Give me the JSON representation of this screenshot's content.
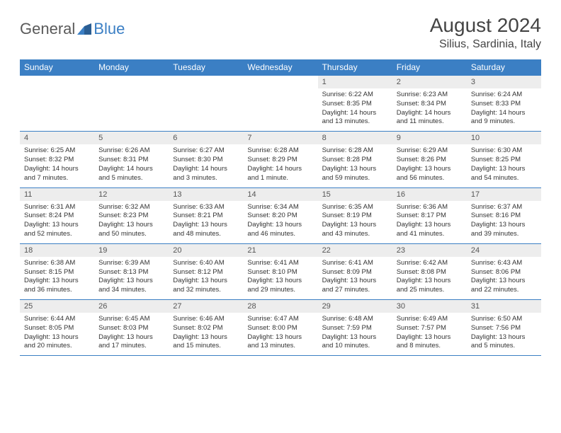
{
  "brand": {
    "name_part1": "General",
    "name_part2": "Blue"
  },
  "title": "August 2024",
  "location": "Silius, Sardinia, Italy",
  "colors": {
    "header_bg": "#3b7fc4",
    "header_text": "#ffffff",
    "daynum_bg": "#ededed",
    "daynum_text": "#555555",
    "body_text": "#333333",
    "border": "#3b7fc4",
    "page_bg": "#ffffff"
  },
  "days_of_week": [
    "Sunday",
    "Monday",
    "Tuesday",
    "Wednesday",
    "Thursday",
    "Friday",
    "Saturday"
  ],
  "weeks": [
    [
      {
        "n": "",
        "sr": "",
        "ss": "",
        "dl": ""
      },
      {
        "n": "",
        "sr": "",
        "ss": "",
        "dl": ""
      },
      {
        "n": "",
        "sr": "",
        "ss": "",
        "dl": ""
      },
      {
        "n": "",
        "sr": "",
        "ss": "",
        "dl": ""
      },
      {
        "n": "1",
        "sr": "Sunrise: 6:22 AM",
        "ss": "Sunset: 8:35 PM",
        "dl": "Daylight: 14 hours and 13 minutes."
      },
      {
        "n": "2",
        "sr": "Sunrise: 6:23 AM",
        "ss": "Sunset: 8:34 PM",
        "dl": "Daylight: 14 hours and 11 minutes."
      },
      {
        "n": "3",
        "sr": "Sunrise: 6:24 AM",
        "ss": "Sunset: 8:33 PM",
        "dl": "Daylight: 14 hours and 9 minutes."
      }
    ],
    [
      {
        "n": "4",
        "sr": "Sunrise: 6:25 AM",
        "ss": "Sunset: 8:32 PM",
        "dl": "Daylight: 14 hours and 7 minutes."
      },
      {
        "n": "5",
        "sr": "Sunrise: 6:26 AM",
        "ss": "Sunset: 8:31 PM",
        "dl": "Daylight: 14 hours and 5 minutes."
      },
      {
        "n": "6",
        "sr": "Sunrise: 6:27 AM",
        "ss": "Sunset: 8:30 PM",
        "dl": "Daylight: 14 hours and 3 minutes."
      },
      {
        "n": "7",
        "sr": "Sunrise: 6:28 AM",
        "ss": "Sunset: 8:29 PM",
        "dl": "Daylight: 14 hours and 1 minute."
      },
      {
        "n": "8",
        "sr": "Sunrise: 6:28 AM",
        "ss": "Sunset: 8:28 PM",
        "dl": "Daylight: 13 hours and 59 minutes."
      },
      {
        "n": "9",
        "sr": "Sunrise: 6:29 AM",
        "ss": "Sunset: 8:26 PM",
        "dl": "Daylight: 13 hours and 56 minutes."
      },
      {
        "n": "10",
        "sr": "Sunrise: 6:30 AM",
        "ss": "Sunset: 8:25 PM",
        "dl": "Daylight: 13 hours and 54 minutes."
      }
    ],
    [
      {
        "n": "11",
        "sr": "Sunrise: 6:31 AM",
        "ss": "Sunset: 8:24 PM",
        "dl": "Daylight: 13 hours and 52 minutes."
      },
      {
        "n": "12",
        "sr": "Sunrise: 6:32 AM",
        "ss": "Sunset: 8:23 PM",
        "dl": "Daylight: 13 hours and 50 minutes."
      },
      {
        "n": "13",
        "sr": "Sunrise: 6:33 AM",
        "ss": "Sunset: 8:21 PM",
        "dl": "Daylight: 13 hours and 48 minutes."
      },
      {
        "n": "14",
        "sr": "Sunrise: 6:34 AM",
        "ss": "Sunset: 8:20 PM",
        "dl": "Daylight: 13 hours and 46 minutes."
      },
      {
        "n": "15",
        "sr": "Sunrise: 6:35 AM",
        "ss": "Sunset: 8:19 PM",
        "dl": "Daylight: 13 hours and 43 minutes."
      },
      {
        "n": "16",
        "sr": "Sunrise: 6:36 AM",
        "ss": "Sunset: 8:17 PM",
        "dl": "Daylight: 13 hours and 41 minutes."
      },
      {
        "n": "17",
        "sr": "Sunrise: 6:37 AM",
        "ss": "Sunset: 8:16 PM",
        "dl": "Daylight: 13 hours and 39 minutes."
      }
    ],
    [
      {
        "n": "18",
        "sr": "Sunrise: 6:38 AM",
        "ss": "Sunset: 8:15 PM",
        "dl": "Daylight: 13 hours and 36 minutes."
      },
      {
        "n": "19",
        "sr": "Sunrise: 6:39 AM",
        "ss": "Sunset: 8:13 PM",
        "dl": "Daylight: 13 hours and 34 minutes."
      },
      {
        "n": "20",
        "sr": "Sunrise: 6:40 AM",
        "ss": "Sunset: 8:12 PM",
        "dl": "Daylight: 13 hours and 32 minutes."
      },
      {
        "n": "21",
        "sr": "Sunrise: 6:41 AM",
        "ss": "Sunset: 8:10 PM",
        "dl": "Daylight: 13 hours and 29 minutes."
      },
      {
        "n": "22",
        "sr": "Sunrise: 6:41 AM",
        "ss": "Sunset: 8:09 PM",
        "dl": "Daylight: 13 hours and 27 minutes."
      },
      {
        "n": "23",
        "sr": "Sunrise: 6:42 AM",
        "ss": "Sunset: 8:08 PM",
        "dl": "Daylight: 13 hours and 25 minutes."
      },
      {
        "n": "24",
        "sr": "Sunrise: 6:43 AM",
        "ss": "Sunset: 8:06 PM",
        "dl": "Daylight: 13 hours and 22 minutes."
      }
    ],
    [
      {
        "n": "25",
        "sr": "Sunrise: 6:44 AM",
        "ss": "Sunset: 8:05 PM",
        "dl": "Daylight: 13 hours and 20 minutes."
      },
      {
        "n": "26",
        "sr": "Sunrise: 6:45 AM",
        "ss": "Sunset: 8:03 PM",
        "dl": "Daylight: 13 hours and 17 minutes."
      },
      {
        "n": "27",
        "sr": "Sunrise: 6:46 AM",
        "ss": "Sunset: 8:02 PM",
        "dl": "Daylight: 13 hours and 15 minutes."
      },
      {
        "n": "28",
        "sr": "Sunrise: 6:47 AM",
        "ss": "Sunset: 8:00 PM",
        "dl": "Daylight: 13 hours and 13 minutes."
      },
      {
        "n": "29",
        "sr": "Sunrise: 6:48 AM",
        "ss": "Sunset: 7:59 PM",
        "dl": "Daylight: 13 hours and 10 minutes."
      },
      {
        "n": "30",
        "sr": "Sunrise: 6:49 AM",
        "ss": "Sunset: 7:57 PM",
        "dl": "Daylight: 13 hours and 8 minutes."
      },
      {
        "n": "31",
        "sr": "Sunrise: 6:50 AM",
        "ss": "Sunset: 7:56 PM",
        "dl": "Daylight: 13 hours and 5 minutes."
      }
    ]
  ]
}
